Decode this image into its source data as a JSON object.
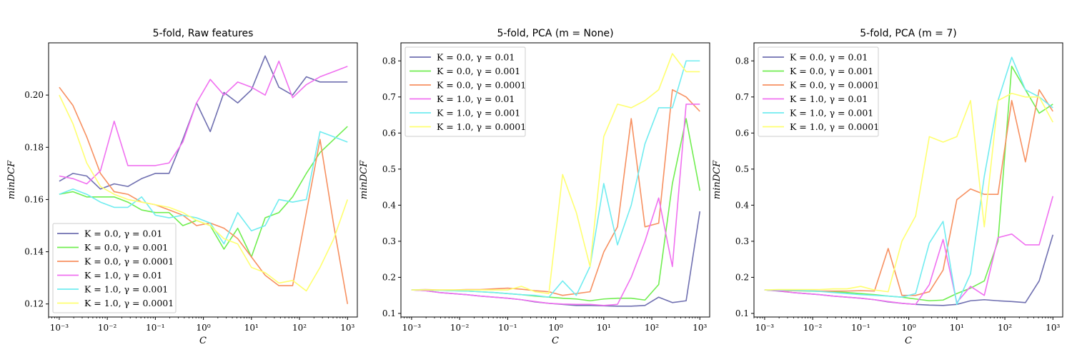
{
  "chart_data": [
    {
      "type": "line",
      "title": "5-fold, Raw features",
      "xlabel": "C",
      "ylabel": "minDCF",
      "xscale": "log",
      "xlim": [
        0.0006,
        1600
      ],
      "ylim": [
        0.115,
        0.22
      ],
      "yticks": [
        0.12,
        0.14,
        0.16,
        0.18,
        0.2
      ],
      "ytick_labels": [
        "0.12",
        "0.14",
        "0.16",
        "0.18",
        "0.20"
      ],
      "xticks": [
        0.001,
        0.01,
        0.1,
        1,
        10,
        100,
        1000
      ],
      "xtick_labels": [
        "10⁻³",
        "10⁻²",
        "10⁻¹",
        "10⁰",
        "10¹",
        "10²",
        "10³"
      ],
      "legend_position": "lower-left",
      "x": [
        0.001,
        0.00193,
        0.00373,
        0.0072,
        0.0139,
        0.0268,
        0.0518,
        0.1,
        0.193,
        0.373,
        0.72,
        1.39,
        2.68,
        5.18,
        10,
        19.3,
        37.3,
        72,
        139,
        268,
        518,
        1000
      ],
      "series": [
        {
          "name": "K = 0.0, γ = 0.01",
          "color": "#6f6fb0",
          "values": [
            0.167,
            0.17,
            0.169,
            0.164,
            0.166,
            0.165,
            0.168,
            0.17,
            0.17,
            0.183,
            0.197,
            0.186,
            0.201,
            0.197,
            0.202,
            0.215,
            0.203,
            0.2,
            0.207,
            0.205,
            0.205,
            0.205
          ]
        },
        {
          "name": "K = 0.0, γ = 0.001",
          "color": "#70ee50",
          "values": [
            0.162,
            0.163,
            0.161,
            0.161,
            0.161,
            0.159,
            0.156,
            0.155,
            0.155,
            0.15,
            0.152,
            0.15,
            0.141,
            0.149,
            0.138,
            0.153,
            0.155,
            0.161,
            0.17,
            0.178,
            0.183,
            0.188
          ]
        },
        {
          "name": "K = 0.0, γ = 0.0001",
          "color": "#f79060",
          "values": [
            0.203,
            0.196,
            0.184,
            0.17,
            0.163,
            0.162,
            0.159,
            0.158,
            0.156,
            0.154,
            0.15,
            0.151,
            0.149,
            0.145,
            0.138,
            0.131,
            0.127,
            0.127,
            0.155,
            0.183,
            0.15,
            0.12
          ]
        },
        {
          "name": "K = 1.0, γ = 0.01",
          "color": "#f070f0",
          "values": [
            0.169,
            0.168,
            0.166,
            0.171,
            0.19,
            0.173,
            0.173,
            0.173,
            0.174,
            0.182,
            0.197,
            0.206,
            0.2,
            0.205,
            0.203,
            0.2,
            0.213,
            0.199,
            0.204,
            0.207,
            0.209,
            0.211
          ]
        },
        {
          "name": "K = 1.0, γ = 0.001",
          "color": "#70ecf0",
          "values": [
            0.162,
            0.164,
            0.162,
            0.159,
            0.157,
            0.157,
            0.161,
            0.154,
            0.153,
            0.154,
            0.153,
            0.151,
            0.143,
            0.155,
            0.148,
            0.15,
            0.16,
            0.159,
            0.16,
            0.186,
            0.184,
            0.182
          ]
        },
        {
          "name": "K = 1.0, γ = 0.0001",
          "color": "#ffff70",
          "values": [
            0.2,
            0.189,
            0.174,
            0.165,
            0.162,
            0.16,
            0.159,
            0.158,
            0.157,
            0.155,
            0.152,
            0.15,
            0.145,
            0.143,
            0.134,
            0.132,
            0.128,
            0.129,
            0.125,
            0.134,
            0.145,
            0.16
          ]
        }
      ]
    },
    {
      "type": "line",
      "title": "5-fold, PCA (m = None)",
      "xlabel": "C",
      "ylabel": "minDCF",
      "xscale": "log",
      "xlim": [
        0.0006,
        1600
      ],
      "ylim": [
        0.09,
        0.85
      ],
      "yticks": [
        0.1,
        0.2,
        0.3,
        0.4,
        0.5,
        0.6,
        0.7,
        0.8
      ],
      "ytick_labels": [
        "0.1",
        "0.2",
        "0.3",
        "0.4",
        "0.5",
        "0.6",
        "0.7",
        "0.8"
      ],
      "xticks": [
        0.001,
        0.01,
        0.1,
        1,
        10,
        100,
        1000
      ],
      "xtick_labels": [
        "10⁻³",
        "10⁻²",
        "10⁻¹",
        "10⁰",
        "10¹",
        "10²",
        "10³"
      ],
      "legend_position": "upper-left",
      "x": [
        0.001,
        0.00193,
        0.00373,
        0.0072,
        0.0139,
        0.0268,
        0.0518,
        0.1,
        0.193,
        0.373,
        0.72,
        1.39,
        2.68,
        5.18,
        10,
        19.3,
        37.3,
        72,
        139,
        268,
        518,
        1000
      ],
      "series": [
        {
          "name": "K = 0.0, γ = 0.01",
          "color": "#6f6fb0",
          "values": [
            0.165,
            0.163,
            0.158,
            0.155,
            0.152,
            0.148,
            0.145,
            0.142,
            0.138,
            0.132,
            0.128,
            0.125,
            0.122,
            0.122,
            0.121,
            0.12,
            0.12,
            0.122,
            0.145,
            0.13,
            0.135,
            0.383
          ]
        },
        {
          "name": "K = 0.0, γ = 0.001",
          "color": "#70ee50",
          "values": [
            0.165,
            0.164,
            0.164,
            0.163,
            0.162,
            0.16,
            0.158,
            0.155,
            0.152,
            0.148,
            0.145,
            0.142,
            0.14,
            0.135,
            0.14,
            0.142,
            0.142,
            0.137,
            0.18,
            0.46,
            0.64,
            0.44
          ]
        },
        {
          "name": "K = 0.0, γ = 0.0001",
          "color": "#f79060",
          "values": [
            0.165,
            0.166,
            0.165,
            0.165,
            0.166,
            0.166,
            0.168,
            0.17,
            0.167,
            0.163,
            0.16,
            0.15,
            0.155,
            0.16,
            0.27,
            0.34,
            0.64,
            0.34,
            0.35,
            0.72,
            0.7,
            0.66
          ]
        },
        {
          "name": "K = 1.0, γ = 0.01",
          "color": "#f070f0",
          "values": [
            0.165,
            0.163,
            0.158,
            0.155,
            0.152,
            0.148,
            0.145,
            0.142,
            0.138,
            0.133,
            0.128,
            0.126,
            0.125,
            0.125,
            0.122,
            0.125,
            0.2,
            0.3,
            0.42,
            0.23,
            0.68,
            0.68
          ]
        },
        {
          "name": "K = 1.0, γ = 0.001",
          "color": "#70ecf0",
          "values": [
            0.165,
            0.165,
            0.164,
            0.163,
            0.162,
            0.16,
            0.158,
            0.155,
            0.152,
            0.15,
            0.145,
            0.19,
            0.15,
            0.23,
            0.46,
            0.29,
            0.4,
            0.57,
            0.67,
            0.67,
            0.8,
            0.8
          ]
        },
        {
          "name": "K = 1.0, γ = 0.0001",
          "color": "#ffff70",
          "values": [
            0.165,
            0.165,
            0.165,
            0.165,
            0.165,
            0.165,
            0.165,
            0.165,
            0.175,
            0.16,
            0.155,
            0.485,
            0.38,
            0.23,
            0.59,
            0.68,
            0.67,
            0.69,
            0.72,
            0.82,
            0.77,
            0.77
          ]
        }
      ]
    },
    {
      "type": "line",
      "title": "5-fold, PCA (m = 7)",
      "xlabel": "C",
      "ylabel": "minDCF",
      "xscale": "log",
      "xlim": [
        0.0006,
        1600
      ],
      "ylim": [
        0.09,
        0.85
      ],
      "yticks": [
        0.1,
        0.2,
        0.3,
        0.4,
        0.5,
        0.6,
        0.7,
        0.8
      ],
      "ytick_labels": [
        "0.1",
        "0.2",
        "0.3",
        "0.4",
        "0.5",
        "0.6",
        "0.7",
        "0.8"
      ],
      "xticks": [
        0.001,
        0.01,
        0.1,
        1,
        10,
        100,
        1000
      ],
      "xtick_labels": [
        "10⁻³",
        "10⁻²",
        "10⁻¹",
        "10⁰",
        "10¹",
        "10²",
        "10³"
      ],
      "legend_position": "upper-left",
      "x": [
        0.001,
        0.00193,
        0.00373,
        0.0072,
        0.0139,
        0.0268,
        0.0518,
        0.1,
        0.193,
        0.373,
        0.72,
        1.39,
        2.68,
        5.18,
        10,
        19.3,
        37.3,
        72,
        139,
        268,
        518,
        1000
      ],
      "series": [
        {
          "name": "K = 0.0, γ = 0.01",
          "color": "#6f6fb0",
          "values": [
            0.165,
            0.162,
            0.158,
            0.155,
            0.152,
            0.148,
            0.145,
            0.142,
            0.138,
            0.132,
            0.128,
            0.125,
            0.123,
            0.122,
            0.125,
            0.135,
            0.138,
            0.135,
            0.133,
            0.13,
            0.19,
            0.318
          ]
        },
        {
          "name": "K = 0.0, γ = 0.001",
          "color": "#70ee50",
          "values": [
            0.165,
            0.163,
            0.163,
            0.162,
            0.161,
            0.16,
            0.158,
            0.155,
            0.152,
            0.148,
            0.145,
            0.14,
            0.135,
            0.137,
            0.155,
            0.17,
            0.19,
            0.3,
            0.785,
            0.72,
            0.655,
            0.68
          ]
        },
        {
          "name": "K = 0.0, γ = 0.0001",
          "color": "#f79060",
          "values": [
            0.165,
            0.164,
            0.163,
            0.163,
            0.162,
            0.162,
            0.162,
            0.163,
            0.162,
            0.28,
            0.15,
            0.15,
            0.16,
            0.22,
            0.415,
            0.445,
            0.43,
            0.43,
            0.69,
            0.52,
            0.72,
            0.66
          ]
        },
        {
          "name": "K = 1.0, γ = 0.01",
          "color": "#f070f0",
          "values": [
            0.165,
            0.163,
            0.158,
            0.155,
            0.152,
            0.148,
            0.145,
            0.142,
            0.138,
            0.133,
            0.128,
            0.125,
            0.18,
            0.305,
            0.13,
            0.175,
            0.15,
            0.31,
            0.32,
            0.29,
            0.29,
            0.425
          ]
        },
        {
          "name": "K = 1.0, γ = 0.001",
          "color": "#70ecf0",
          "values": [
            0.165,
            0.165,
            0.164,
            0.163,
            0.161,
            0.158,
            0.155,
            0.152,
            0.15,
            0.148,
            0.145,
            0.155,
            0.295,
            0.355,
            0.125,
            0.21,
            0.48,
            0.69,
            0.81,
            0.72,
            0.7,
            0.67
          ]
        },
        {
          "name": "K = 1.0, γ = 0.0001",
          "color": "#ffff70",
          "values": [
            0.165,
            0.166,
            0.166,
            0.166,
            0.166,
            0.168,
            0.168,
            0.175,
            0.165,
            0.16,
            0.3,
            0.37,
            0.59,
            0.575,
            0.59,
            0.69,
            0.34,
            0.69,
            0.71,
            0.7,
            0.7,
            0.63
          ]
        }
      ]
    }
  ]
}
